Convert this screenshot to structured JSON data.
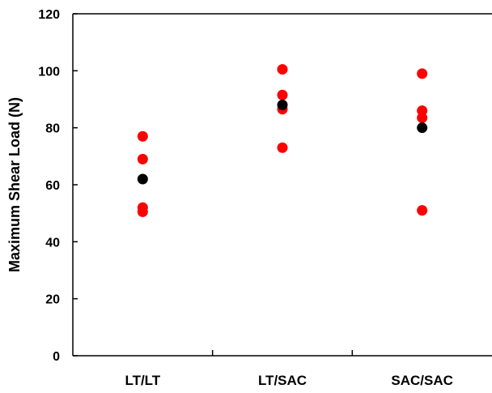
{
  "chart_data": {
    "type": "scatter",
    "title": "",
    "xlabel": "",
    "ylabel": "Maximum Shear Load (N)",
    "ylim": [
      0,
      120
    ],
    "yticks": [
      0,
      20,
      40,
      60,
      80,
      100,
      120
    ],
    "categories": [
      "LT/LT",
      "LT/SAC",
      "SAC/SAC"
    ],
    "grid": false,
    "legend": "none",
    "series": [
      {
        "color": "#ff0000",
        "points": [
          {
            "category": "LT/LT",
            "y": 77.0
          },
          {
            "category": "LT/LT",
            "y": 69.0
          },
          {
            "category": "LT/LT",
            "y": 52.0
          },
          {
            "category": "LT/LT",
            "y": 50.5
          },
          {
            "category": "LT/SAC",
            "y": 100.5
          },
          {
            "category": "LT/SAC",
            "y": 91.5
          },
          {
            "category": "LT/SAC",
            "y": 86.5
          },
          {
            "category": "LT/SAC",
            "y": 73.0
          },
          {
            "category": "SAC/SAC",
            "y": 99.0
          },
          {
            "category": "SAC/SAC",
            "y": 86.0
          },
          {
            "category": "SAC/SAC",
            "y": 83.5
          },
          {
            "category": "SAC/SAC",
            "y": 51.0
          }
        ]
      },
      {
        "color": "#000000",
        "points": [
          {
            "category": "LT/LT",
            "y": 62.0
          },
          {
            "category": "LT/SAC",
            "y": 88.0
          },
          {
            "category": "SAC/SAC",
            "y": 80.0
          }
        ]
      }
    ]
  }
}
